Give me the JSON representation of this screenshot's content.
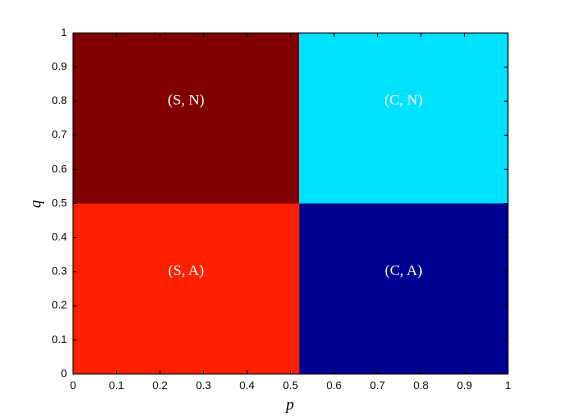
{
  "chart_data": {
    "type": "region",
    "xlabel": "p",
    "ylabel": "q",
    "xlim": [
      0,
      1
    ],
    "ylim": [
      0,
      1
    ],
    "xticks": [
      0,
      0.1,
      0.2,
      0.3,
      0.4,
      0.5,
      0.6,
      0.7,
      0.8,
      0.9,
      1
    ],
    "yticks": [
      0,
      0.1,
      0.2,
      0.3,
      0.4,
      0.5,
      0.6,
      0.7,
      0.8,
      0.9,
      1
    ],
    "regions": [
      {
        "label": "(S, N)",
        "x": [
          0,
          0.52
        ],
        "y": [
          0.5,
          1
        ],
        "color": "#800000"
      },
      {
        "label": "(C, N)",
        "x": [
          0.52,
          1
        ],
        "y": [
          0.5,
          1
        ],
        "color": "#00e0ff"
      },
      {
        "label": "(S, A)",
        "x": [
          0,
          0.52
        ],
        "y": [
          0,
          0.5
        ],
        "color": "#ff2000"
      },
      {
        "label": "(C, A)",
        "x": [
          0.52,
          1
        ],
        "y": [
          0,
          0.5
        ],
        "color": "#000090"
      }
    ]
  }
}
